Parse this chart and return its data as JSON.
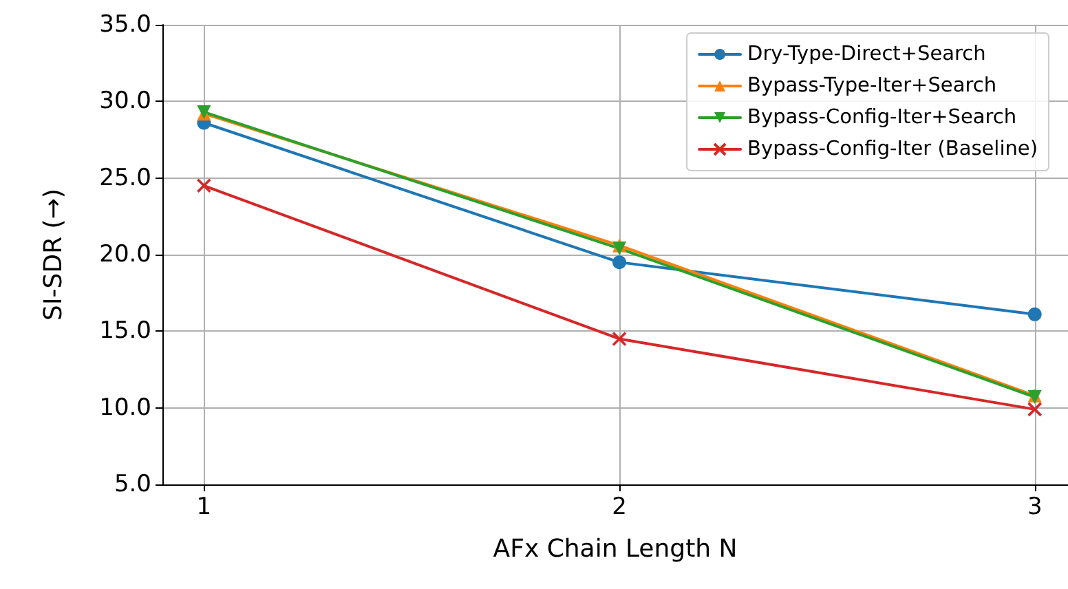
{
  "chart_data": {
    "type": "line",
    "xlabel": "AFx Chain Length N",
    "ylabel": "SI-SDR (→)",
    "x": [
      1,
      2,
      3
    ],
    "series": [
      {
        "name": "Dry-Type-Direct+Search",
        "color": "#1f77b4",
        "marker": "circle",
        "values": [
          28.6,
          19.5,
          16.1
        ]
      },
      {
        "name": "Bypass-Type-Iter+Search",
        "color": "#ff7f0e",
        "marker": "triangle",
        "values": [
          29.2,
          20.6,
          10.8
        ]
      },
      {
        "name": "Bypass-Config-Iter+Search",
        "color": "#2ca02c",
        "marker": "triangle_down",
        "values": [
          29.3,
          20.4,
          10.7
        ]
      },
      {
        "name": "Bypass-Config-Iter (Baseline)",
        "color": "#d62728",
        "marker": "cross",
        "values": [
          24.5,
          14.5,
          9.9
        ]
      }
    ],
    "xlim": [
      0.9,
      3.08
    ],
    "xticks": [
      1,
      2,
      3
    ],
    "ylim": [
      5,
      35
    ],
    "yticks": [
      {
        "value": 5,
        "label": "5.0"
      },
      {
        "value": 10,
        "label": "10.0"
      },
      {
        "value": 15,
        "label": "15.0"
      },
      {
        "value": 20,
        "label": "20.0"
      },
      {
        "value": 25,
        "label": "25.0"
      },
      {
        "value": 30,
        "label": "30.0"
      },
      {
        "value": 35,
        "label": "35.0"
      }
    ],
    "grid": true,
    "legend": "top right",
    "line_style": "solid"
  }
}
